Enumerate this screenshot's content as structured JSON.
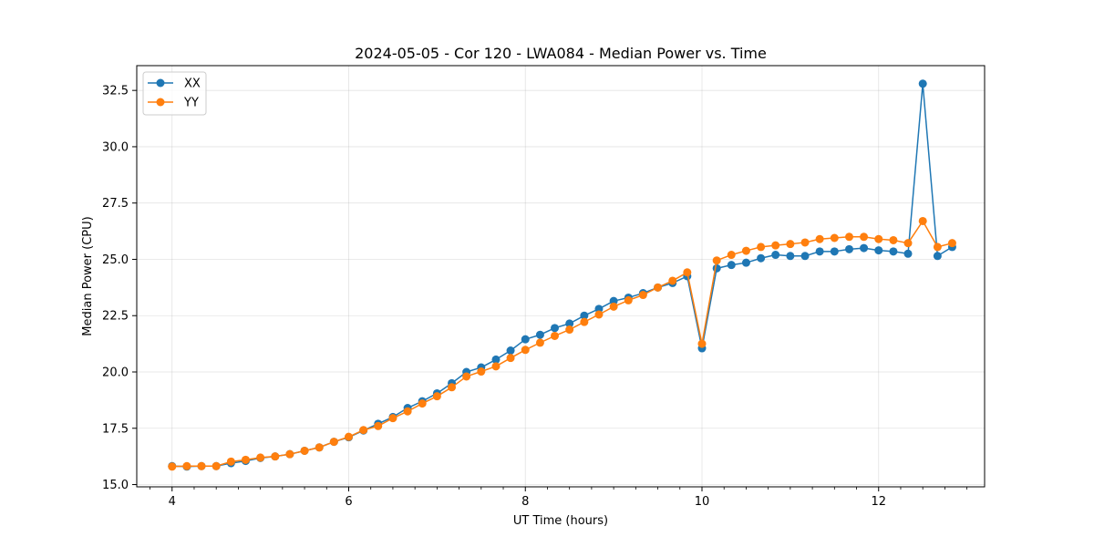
{
  "chart_data": {
    "type": "line",
    "title": "2024-05-05 - Cor 120 - LWA084 - Median Power vs. Time",
    "xlabel": "UT Time (hours)",
    "ylabel": "Median Power (CPU)",
    "xlim": [
      3.6,
      13.2
    ],
    "ylim": [
      14.9,
      33.6
    ],
    "xticks": [
      4,
      6,
      8,
      10,
      12
    ],
    "xtick_labels": [
      "4",
      "6",
      "8",
      "10",
      "12"
    ],
    "yticks": [
      15.0,
      17.5,
      20.0,
      22.5,
      25.0,
      27.5,
      30.0,
      32.5
    ],
    "ytick_labels": [
      "15.0",
      "17.5",
      "20.0",
      "22.5",
      "25.0",
      "27.5",
      "30.0",
      "32.5"
    ],
    "grid": true,
    "legend_position": "top-left",
    "x": [
      4.0,
      4.167,
      4.333,
      4.5,
      4.667,
      4.833,
      5.0,
      5.167,
      5.333,
      5.5,
      5.667,
      5.833,
      6.0,
      6.167,
      6.333,
      6.5,
      6.667,
      6.833,
      7.0,
      7.167,
      7.333,
      7.5,
      7.667,
      7.833,
      8.0,
      8.167,
      8.333,
      8.5,
      8.667,
      8.833,
      9.0,
      9.167,
      9.333,
      9.5,
      9.667,
      9.833,
      10.0,
      10.167,
      10.333,
      10.5,
      10.667,
      10.833,
      11.0,
      11.167,
      11.333,
      11.5,
      11.667,
      11.833,
      12.0,
      12.167,
      12.333,
      12.5,
      12.667,
      12.833
    ],
    "series": [
      {
        "name": "XX",
        "color": "#1f77b4",
        "values": [
          15.82,
          15.8,
          15.82,
          15.82,
          15.95,
          16.05,
          16.18,
          16.25,
          16.35,
          16.5,
          16.65,
          16.9,
          17.1,
          17.4,
          17.7,
          18.0,
          18.4,
          18.7,
          19.05,
          19.5,
          20.0,
          20.2,
          20.55,
          20.95,
          21.45,
          21.65,
          21.95,
          22.15,
          22.5,
          22.8,
          23.15,
          23.3,
          23.5,
          23.75,
          23.95,
          24.25,
          21.05,
          24.6,
          24.75,
          24.85,
          25.05,
          25.2,
          25.15,
          25.15,
          25.35,
          25.35,
          25.45,
          25.5,
          25.4,
          25.35,
          25.25,
          32.8,
          25.15,
          25.55
        ]
      },
      {
        "name": "YY",
        "color": "#ff7f0e",
        "values": [
          15.8,
          15.82,
          15.82,
          15.82,
          16.02,
          16.1,
          16.2,
          16.25,
          16.35,
          16.5,
          16.65,
          16.9,
          17.12,
          17.42,
          17.6,
          17.95,
          18.25,
          18.6,
          18.92,
          19.32,
          19.8,
          20.02,
          20.25,
          20.62,
          20.98,
          21.3,
          21.6,
          21.88,
          22.22,
          22.55,
          22.9,
          23.18,
          23.42,
          23.75,
          24.05,
          24.42,
          21.25,
          24.95,
          25.2,
          25.38,
          25.55,
          25.62,
          25.68,
          25.75,
          25.9,
          25.95,
          26.0,
          26.0,
          25.9,
          25.85,
          25.72,
          26.7,
          25.55,
          25.72
        ]
      }
    ]
  }
}
